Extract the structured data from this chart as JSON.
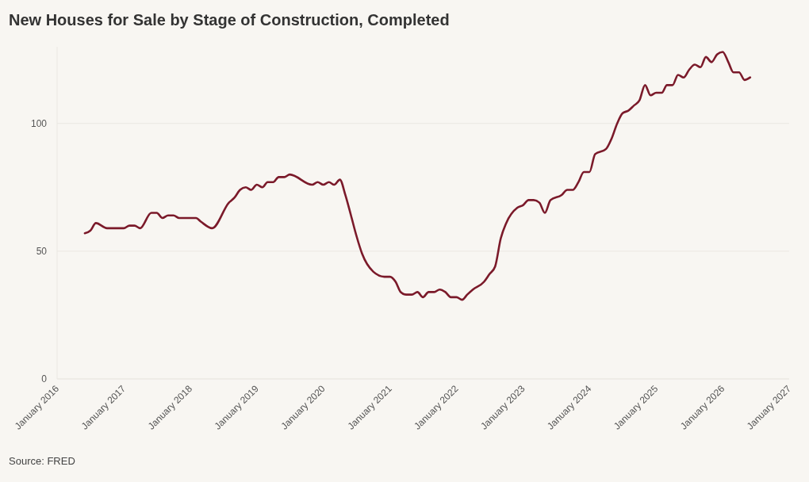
{
  "chart_data": {
    "type": "line",
    "title": "New Houses for Sale by Stage of Construction, Completed",
    "annotations": [
      "Source: FRED"
    ],
    "x": [
      "2016-06",
      "2016-07",
      "2016-08",
      "2016-10",
      "2016-11",
      "2016-12",
      "2017-01",
      "2017-02",
      "2017-03",
      "2017-04",
      "2017-06",
      "2017-07",
      "2017-08",
      "2017-09",
      "2017-10",
      "2017-11",
      "2018-02",
      "2018-03",
      "2018-05",
      "2018-08",
      "2018-09",
      "2018-10",
      "2018-11",
      "2018-12",
      "2019-01",
      "2019-02",
      "2019-03",
      "2019-04",
      "2019-05",
      "2019-06",
      "2019-07",
      "2019-11",
      "2019-12",
      "2020-01",
      "2020-02",
      "2020-03",
      "2020-04",
      "2020-05",
      "2020-06",
      "2020-07",
      "2020-08",
      "2020-10",
      "2020-12",
      "2021-01",
      "2021-02",
      "2021-03",
      "2021-04",
      "2021-05",
      "2021-06",
      "2021-07",
      "2021-08",
      "2021-09",
      "2021-10",
      "2021-11",
      "2021-12",
      "2022-01",
      "2022-02",
      "2022-03",
      "2022-04",
      "2022-06",
      "2022-07",
      "2022-08",
      "2022-09",
      "2022-10",
      "2022-12",
      "2023-01",
      "2023-02",
      "2023-03",
      "2023-04",
      "2023-05",
      "2023-06",
      "2023-08",
      "2023-09",
      "2023-10",
      "2023-11",
      "2023-12",
      "2024-01",
      "2024-02",
      "2024-04",
      "2024-05",
      "2024-06",
      "2024-07",
      "2024-08",
      "2024-09",
      "2024-10",
      "2024-11",
      "2024-12",
      "2025-01",
      "2025-02",
      "2025-03",
      "2025-04",
      "2025-05",
      "2025-06",
      "2025-07",
      "2025-08",
      "2025-09",
      "2025-10",
      "2025-11",
      "2025-12",
      "2026-01",
      "2026-02",
      "2026-03",
      "2026-04",
      "2026-05",
      "2026-06"
    ],
    "series": [
      {
        "color": "#7b1a2a",
        "values": [
          57,
          58,
          61,
          59,
          59,
          59,
          59,
          60,
          60,
          59,
          65,
          65,
          63,
          64,
          64,
          63,
          63,
          61.5,
          59,
          69,
          71,
          74,
          75,
          74,
          76,
          75,
          77,
          77,
          79,
          79,
          80,
          76,
          77,
          76,
          77,
          76,
          78,
          72,
          64,
          56,
          49,
          42,
          40,
          40,
          38,
          34,
          33,
          33,
          34,
          32,
          34,
          34,
          35,
          34,
          32,
          32,
          31,
          33,
          35,
          38,
          41,
          44,
          55,
          61,
          67,
          68,
          70,
          70,
          69,
          65,
          70,
          72,
          74,
          74,
          77,
          81,
          81,
          88,
          90,
          94,
          100,
          104,
          105,
          107,
          109,
          115,
          111,
          112,
          112,
          115,
          115,
          119,
          118,
          121,
          123,
          122,
          126,
          124,
          127,
          128,
          124,
          120,
          120,
          117,
          118
        ]
      }
    ],
    "xlim": [
      "2016-01",
      "2027-01"
    ],
    "xticks": [
      {
        "value": "2016-01",
        "label": "January 2016"
      },
      {
        "value": "2017-01",
        "label": "January 2017"
      },
      {
        "value": "2018-01",
        "label": "January 2018"
      },
      {
        "value": "2019-01",
        "label": "January 2019"
      },
      {
        "value": "2020-01",
        "label": "January 2020"
      },
      {
        "value": "2021-01",
        "label": "January 2021"
      },
      {
        "value": "2022-01",
        "label": "January 2022"
      },
      {
        "value": "2023-01",
        "label": "January 2023"
      },
      {
        "value": "2024-01",
        "label": "January 2024"
      },
      {
        "value": "2025-01",
        "label": "January 2025"
      },
      {
        "value": "2026-01",
        "label": "January 2026"
      },
      {
        "value": "2027-01",
        "label": "January 2027"
      }
    ],
    "ylim": [
      0,
      130
    ],
    "yticks": [
      0,
      50,
      100
    ],
    "grid": "y",
    "line_style": "solid"
  }
}
